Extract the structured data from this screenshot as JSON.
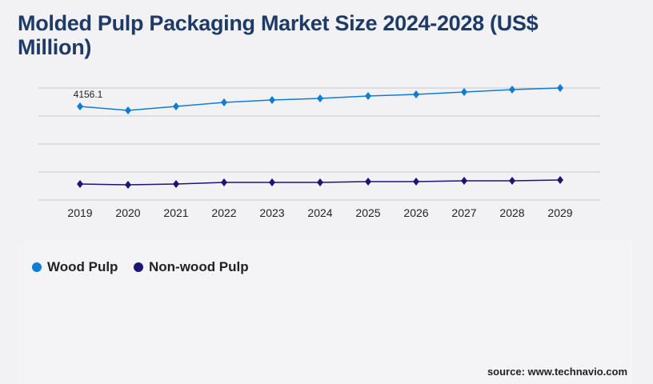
{
  "chart_data": {
    "type": "line",
    "title": "Molded Pulp Packaging Market Size 2024-2028 (US$ Million)",
    "xlabel": "",
    "ylabel": "",
    "categories": [
      "2019",
      "2020",
      "2021",
      "2022",
      "2023",
      "2024",
      "2025",
      "2026",
      "2027",
      "2028",
      "2029"
    ],
    "ylim": [
      0,
      4973
    ],
    "grid": true,
    "legend_position": "bottom-left",
    "series": [
      {
        "name": "Wood Pulp",
        "color": "#0b7dd6",
        "values": [
          4156.1,
          3978,
          4156,
          4334,
          4440,
          4511,
          4618,
          4689,
          4795,
          4902,
          4973
        ]
      },
      {
        "name": "Non-wood Pulp",
        "color": "#1c1675",
        "values": [
          710,
          675,
          710,
          781,
          781,
          781,
          817,
          817,
          852,
          852,
          888
        ]
      }
    ],
    "annotations": [
      {
        "label": "4156.1",
        "series": "Wood Pulp",
        "category": "2019"
      }
    ]
  },
  "source": "source: www.technavio.com"
}
